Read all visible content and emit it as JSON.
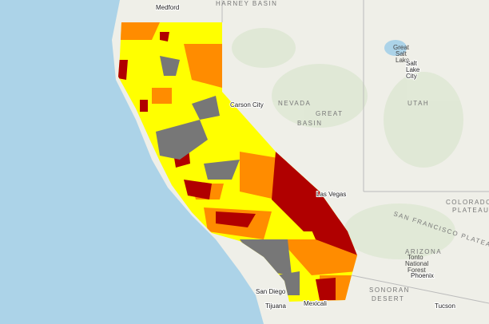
{
  "map": {
    "labels": [
      {
        "text": "Medford"
      },
      {
        "text": "HARNEY BASIN"
      },
      {
        "text": "Carson City"
      },
      {
        "text": "NEVADA"
      },
      {
        "text": "GREAT"
      },
      {
        "text": "BASIN"
      },
      {
        "text": "Great"
      },
      {
        "text": "Salt"
      },
      {
        "text": "Lake"
      },
      {
        "text": "Salt"
      },
      {
        "text": "Lake"
      },
      {
        "text": "City"
      },
      {
        "text": "UTAH"
      },
      {
        "text": "Las Vegas"
      },
      {
        "text": "COLORADO"
      },
      {
        "text": "PLATEAU"
      },
      {
        "text": "SAN FRANCISCO PLATEAU"
      },
      {
        "text": "ARIZONA"
      },
      {
        "text": "Tonto"
      },
      {
        "text": "National"
      },
      {
        "text": "Forest"
      },
      {
        "text": "Phoenix"
      },
      {
        "text": "SONORAN"
      },
      {
        "text": "DESERT"
      },
      {
        "text": "San Diego"
      },
      {
        "text": "Tijuana"
      },
      {
        "text": "Mexicali"
      },
      {
        "text": "Tucson"
      }
    ]
  }
}
